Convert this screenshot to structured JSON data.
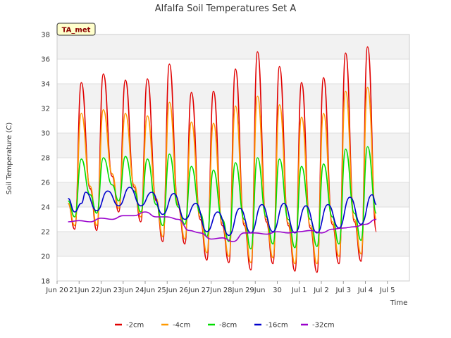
{
  "chart_data": {
    "type": "line",
    "title": "Alfalfa Soil Temperatures Set A",
    "xlabel": "Time",
    "ylabel": "Soil Temperature (C)",
    "ylim": [
      18,
      38
    ],
    "yticks": [
      18,
      20,
      22,
      24,
      26,
      28,
      30,
      32,
      34,
      36,
      38
    ],
    "xlim": [
      0,
      16
    ],
    "xticks": [
      {
        "x": 0,
        "label": "Jun 20"
      },
      {
        "x": 1,
        "label": "21Jun"
      },
      {
        "x": 2,
        "label": "22Jun"
      },
      {
        "x": 3,
        "label": "23Jun"
      },
      {
        "x": 4,
        "label": "24Jun"
      },
      {
        "x": 5,
        "label": "25Jun"
      },
      {
        "x": 6,
        "label": "26Jun"
      },
      {
        "x": 7,
        "label": "27Jun"
      },
      {
        "x": 8,
        "label": "28Jun"
      },
      {
        "x": 9,
        "label": "29Jun"
      },
      {
        "x": 10,
        "label": "30"
      },
      {
        "x": 11,
        "label": "Jul 1"
      },
      {
        "x": 12,
        "label": "Jul 2"
      },
      {
        "x": 13,
        "label": "Jul 3"
      },
      {
        "x": 14,
        "label": "Jul 4"
      },
      {
        "x": 15,
        "label": "Jul 5"
      }
    ],
    "x_note": "x values are days since the Jun 20 tick",
    "grid": true,
    "legend_position": "bottom",
    "annotation": "TA_met",
    "series": [
      {
        "name": "-2cm",
        "color": "#e00000",
        "points": [
          [
            0.5,
            24.3
          ],
          [
            0.8,
            22.2
          ],
          [
            1.1,
            34.1
          ],
          [
            1.5,
            25.5
          ],
          [
            1.8,
            22.1
          ],
          [
            2.1,
            34.8
          ],
          [
            2.5,
            26.5
          ],
          [
            2.8,
            23.6
          ],
          [
            3.1,
            34.3
          ],
          [
            3.5,
            25.6
          ],
          [
            3.8,
            22.8
          ],
          [
            4.1,
            34.4
          ],
          [
            4.5,
            24.5
          ],
          [
            4.8,
            21.2
          ],
          [
            5.1,
            35.6
          ],
          [
            5.5,
            24.0
          ],
          [
            5.8,
            21.0
          ],
          [
            6.1,
            33.3
          ],
          [
            6.5,
            23.0
          ],
          [
            6.8,
            19.7
          ],
          [
            7.1,
            33.4
          ],
          [
            7.5,
            22.5
          ],
          [
            7.8,
            19.5
          ],
          [
            8.1,
            35.2
          ],
          [
            8.5,
            22.5
          ],
          [
            8.8,
            18.9
          ],
          [
            9.1,
            36.6
          ],
          [
            9.5,
            22.8
          ],
          [
            9.8,
            19.4
          ],
          [
            10.1,
            35.4
          ],
          [
            10.5,
            22.5
          ],
          [
            10.8,
            18.8
          ],
          [
            11.1,
            34.1
          ],
          [
            11.5,
            22.3
          ],
          [
            11.8,
            18.7
          ],
          [
            12.1,
            34.5
          ],
          [
            12.5,
            22.6
          ],
          [
            12.8,
            19.4
          ],
          [
            13.1,
            36.5
          ],
          [
            13.5,
            22.8
          ],
          [
            13.8,
            19.6
          ],
          [
            14.1,
            37.0
          ],
          [
            14.5,
            22.0
          ]
        ]
      },
      {
        "name": "-4cm",
        "color": "#ff9900",
        "points": [
          [
            0.5,
            24.3
          ],
          [
            0.8,
            22.5
          ],
          [
            1.1,
            31.6
          ],
          [
            1.5,
            25.7
          ],
          [
            1.8,
            22.5
          ],
          [
            2.1,
            31.9
          ],
          [
            2.5,
            26.7
          ],
          [
            2.8,
            23.9
          ],
          [
            3.1,
            31.6
          ],
          [
            3.5,
            25.8
          ],
          [
            3.8,
            23.2
          ],
          [
            4.1,
            31.4
          ],
          [
            4.5,
            24.7
          ],
          [
            4.8,
            21.6
          ],
          [
            5.1,
            32.5
          ],
          [
            5.5,
            24.2
          ],
          [
            5.8,
            21.4
          ],
          [
            6.1,
            30.9
          ],
          [
            6.5,
            23.2
          ],
          [
            6.8,
            20.3
          ],
          [
            7.1,
            30.8
          ],
          [
            7.5,
            22.7
          ],
          [
            7.8,
            20.0
          ],
          [
            8.1,
            32.2
          ],
          [
            8.5,
            22.7
          ],
          [
            8.8,
            19.5
          ],
          [
            9.1,
            33.0
          ],
          [
            9.5,
            23.0
          ],
          [
            9.8,
            19.9
          ],
          [
            10.1,
            32.3
          ],
          [
            10.5,
            22.7
          ],
          [
            10.8,
            19.4
          ],
          [
            11.1,
            31.3
          ],
          [
            11.5,
            22.5
          ],
          [
            11.8,
            19.4
          ],
          [
            12.1,
            31.6
          ],
          [
            12.5,
            22.8
          ],
          [
            12.8,
            20.0
          ],
          [
            13.1,
            33.4
          ],
          [
            13.5,
            23.0
          ],
          [
            13.8,
            20.2
          ],
          [
            14.1,
            33.7
          ],
          [
            14.5,
            23.0
          ]
        ]
      },
      {
        "name": "-8cm",
        "color": "#00dd00",
        "points": [
          [
            0.5,
            24.5
          ],
          [
            0.8,
            23.2
          ],
          [
            1.1,
            27.9
          ],
          [
            1.5,
            25.0
          ],
          [
            1.8,
            23.5
          ],
          [
            2.1,
            28.0
          ],
          [
            2.5,
            25.8
          ],
          [
            2.8,
            24.5
          ],
          [
            3.1,
            28.1
          ],
          [
            3.5,
            25.3
          ],
          [
            3.8,
            23.6
          ],
          [
            4.1,
            27.9
          ],
          [
            4.5,
            24.2
          ],
          [
            4.8,
            22.5
          ],
          [
            5.1,
            28.3
          ],
          [
            5.5,
            24.0
          ],
          [
            5.8,
            22.6
          ],
          [
            6.1,
            27.3
          ],
          [
            6.5,
            23.5
          ],
          [
            6.8,
            21.6
          ],
          [
            7.1,
            27.0
          ],
          [
            7.5,
            23.0
          ],
          [
            7.8,
            21.2
          ],
          [
            8.1,
            27.6
          ],
          [
            8.5,
            23.0
          ],
          [
            8.8,
            20.6
          ],
          [
            9.1,
            28.0
          ],
          [
            9.5,
            23.2
          ],
          [
            9.8,
            21.0
          ],
          [
            10.1,
            27.9
          ],
          [
            10.5,
            23.0
          ],
          [
            10.8,
            20.7
          ],
          [
            11.1,
            27.3
          ],
          [
            11.5,
            23.0
          ],
          [
            11.8,
            20.8
          ],
          [
            12.1,
            27.5
          ],
          [
            12.5,
            23.2
          ],
          [
            12.8,
            21.0
          ],
          [
            13.1,
            28.7
          ],
          [
            13.5,
            23.5
          ],
          [
            13.8,
            21.3
          ],
          [
            14.1,
            28.9
          ],
          [
            14.5,
            23.5
          ]
        ]
      },
      {
        "name": "-16cm",
        "color": "#0000cc",
        "points": [
          [
            0.5,
            24.7
          ],
          [
            0.8,
            23.6
          ],
          [
            1.1,
            24.3
          ],
          [
            1.3,
            25.2
          ],
          [
            1.8,
            23.7
          ],
          [
            2.3,
            25.3
          ],
          [
            2.8,
            24.1
          ],
          [
            3.3,
            25.6
          ],
          [
            3.8,
            24.1
          ],
          [
            4.3,
            25.2
          ],
          [
            4.8,
            23.4
          ],
          [
            5.3,
            25.1
          ],
          [
            5.8,
            23.0
          ],
          [
            6.3,
            24.3
          ],
          [
            6.8,
            22.0
          ],
          [
            7.3,
            23.6
          ],
          [
            7.8,
            21.7
          ],
          [
            8.3,
            23.9
          ],
          [
            8.8,
            21.9
          ],
          [
            9.3,
            24.2
          ],
          [
            9.8,
            22.0
          ],
          [
            10.3,
            24.3
          ],
          [
            10.8,
            21.9
          ],
          [
            11.3,
            24.1
          ],
          [
            11.8,
            21.9
          ],
          [
            12.3,
            24.2
          ],
          [
            12.8,
            22.3
          ],
          [
            13.3,
            24.8
          ],
          [
            13.8,
            22.6
          ],
          [
            14.3,
            25.0
          ],
          [
            14.5,
            24.2
          ]
        ]
      },
      {
        "name": "-32cm",
        "color": "#9900cc",
        "points": [
          [
            0.5,
            22.8
          ],
          [
            1.0,
            22.9
          ],
          [
            1.5,
            22.8
          ],
          [
            2.0,
            23.1
          ],
          [
            2.5,
            23.0
          ],
          [
            3.0,
            23.3
          ],
          [
            3.5,
            23.3
          ],
          [
            4.0,
            23.6
          ],
          [
            4.5,
            23.2
          ],
          [
            5.0,
            23.2
          ],
          [
            5.5,
            23.0
          ],
          [
            6.0,
            22.1
          ],
          [
            6.5,
            21.9
          ],
          [
            7.0,
            21.4
          ],
          [
            7.5,
            21.5
          ],
          [
            8.0,
            21.2
          ],
          [
            8.5,
            21.9
          ],
          [
            9.0,
            21.9
          ],
          [
            9.5,
            21.8
          ],
          [
            10.0,
            22.0
          ],
          [
            10.5,
            21.9
          ],
          [
            11.0,
            22.0
          ],
          [
            11.5,
            22.1
          ],
          [
            12.0,
            21.9
          ],
          [
            12.5,
            22.2
          ],
          [
            13.0,
            22.3
          ],
          [
            13.5,
            22.4
          ],
          [
            14.0,
            22.6
          ],
          [
            14.5,
            23.0
          ]
        ]
      }
    ]
  }
}
